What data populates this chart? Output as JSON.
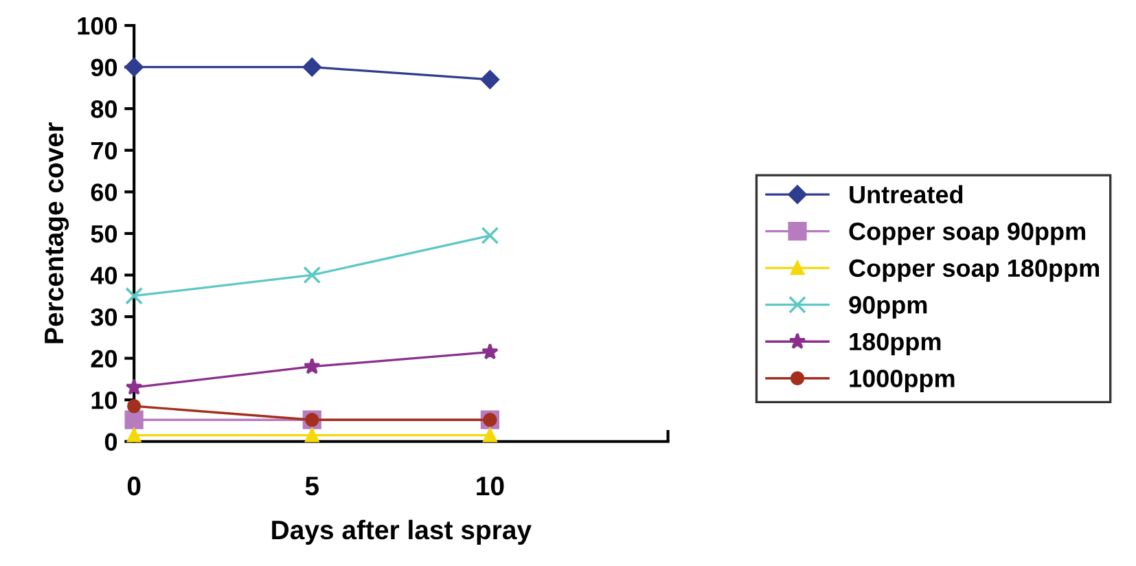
{
  "chart_data": {
    "type": "line",
    "xlabel": "Days after last spray",
    "ylabel": "Percentage cover",
    "x": [
      0,
      5,
      10
    ],
    "xlim": [
      0,
      15
    ],
    "xticks": [
      0,
      5,
      10,
      {
        "value": 15,
        "label": null
      }
    ],
    "ylim": [
      0,
      100
    ],
    "yticks": [
      0,
      10,
      20,
      30,
      40,
      50,
      60,
      70,
      80,
      90,
      100
    ],
    "grid": false,
    "legend": "right",
    "line_style": "solid",
    "series": [
      {
        "name": "Untreated",
        "color": "#2e3d8f",
        "marker": "diamond",
        "values": [
          90,
          90,
          87
        ]
      },
      {
        "name": "Copper soap 90ppm",
        "color": "#b77cbf",
        "marker": "square",
        "values": [
          5.2,
          5.2,
          5.2
        ]
      },
      {
        "name": "Copper soap 180ppm",
        "color": "#f5d80a",
        "marker": "triangle",
        "values": [
          1.5,
          1.5,
          1.5
        ]
      },
      {
        "name": "90ppm",
        "color": "#5ec8c4",
        "marker": "cross",
        "values": [
          35,
          40,
          49.5
        ]
      },
      {
        "name": "180ppm",
        "color": "#8b2f8e",
        "marker": "star",
        "values": [
          13,
          18,
          21.5
        ]
      },
      {
        "name": "1000ppm",
        "color": "#a3301f",
        "marker": "circle",
        "values": [
          8.5,
          5.2,
          5.2
        ]
      }
    ]
  }
}
